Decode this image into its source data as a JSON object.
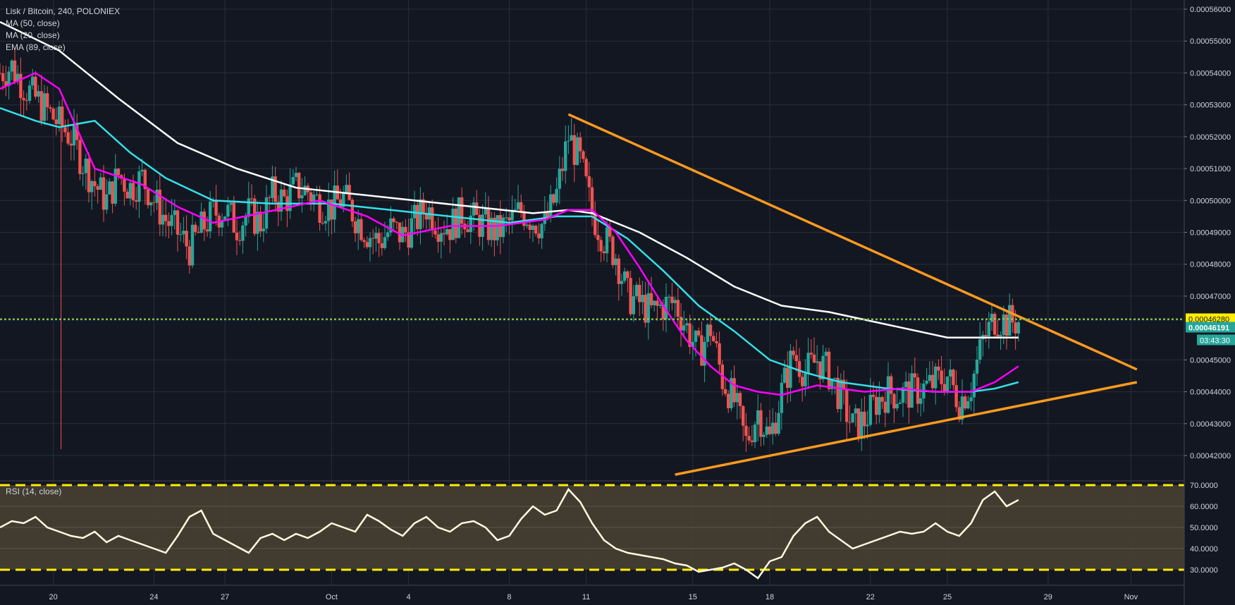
{
  "header": {
    "title": "Lisk / Bitcoin, 240, POLONIEX",
    "indicators": [
      "MA (50, close)",
      "MA (20, close)",
      "EMA (89, close)"
    ],
    "rsi_label": "RSI (14, close)"
  },
  "price_axis": {
    "labels": [
      "0.00056000",
      "0.00055000",
      "0.00054000",
      "0.00053000",
      "0.00052000",
      "0.00051000",
      "0.00050000",
      "0.00049000",
      "0.00048000",
      "0.00047000",
      "0.00045000",
      "0.00044000",
      "0.00043000",
      "0.00042000"
    ],
    "last_price": "0.00046280",
    "current_price": "0.00046191",
    "countdown": "03:43:30"
  },
  "rsi_axis": {
    "labels": [
      "70.0000",
      "60.0000",
      "50.0000",
      "40.0000",
      "30.0000"
    ]
  },
  "time_axis": {
    "labels": [
      "20",
      "24",
      "27",
      "Oct",
      "4",
      "8",
      "11",
      "15",
      "18",
      "22",
      "25",
      "29",
      "Nov"
    ]
  },
  "colors": {
    "background": "#131722",
    "up": "#26a69a",
    "down": "#ef5350",
    "ma50": "#ff00ff",
    "ma20": "#33e0e8",
    "ema89": "#ffffff",
    "trendline": "#ff9a1f",
    "rsi_line": "#fffbe0",
    "rsi_band": "#4a4233",
    "rsi_level": "#ffee00",
    "last_price": "#ffee00",
    "current_price": "#26a69a"
  },
  "chart_data": {
    "type": "candlestick",
    "symbol": "Lisk / Bitcoin",
    "interval": "240",
    "exchange": "POLONIEX",
    "ylim": [
      0.000415,
      0.000565
    ],
    "rsi_ylim": [
      25,
      71
    ],
    "rsi_levels": [
      70,
      30
    ],
    "ohlc_path": [
      [
        0,
        0.00054
      ],
      [
        2,
        0.000542
      ],
      [
        4,
        0.000536
      ],
      [
        6,
        0.000532
      ],
      [
        8,
        0.000528
      ],
      [
        10,
        0.000524
      ],
      [
        12,
        0.00052
      ],
      [
        14,
        0.000512
      ],
      [
        16,
        0.000505
      ],
      [
        18,
        0.0005
      ],
      [
        20,
        0.000508
      ],
      [
        22,
        0.000504
      ],
      [
        24,
        0.000507
      ],
      [
        26,
        0.0005
      ],
      [
        28,
        0.000494
      ],
      [
        30,
        0.00049
      ],
      [
        32,
        0.000485
      ],
      [
        34,
        0.000491
      ],
      [
        36,
        0.000496
      ],
      [
        38,
        0.000497
      ],
      [
        40,
        0.000492
      ],
      [
        42,
        0.000496
      ],
      [
        44,
        0.000493
      ],
      [
        46,
        0.000502
      ],
      [
        48,
        0.0005
      ],
      [
        50,
        0.000504
      ],
      [
        52,
        0.000503
      ],
      [
        54,
        0.000499
      ],
      [
        56,
        0.000498
      ],
      [
        58,
        0.000501
      ],
      [
        60,
        0.000495
      ],
      [
        62,
        0.00049
      ],
      [
        64,
        0.000487
      ],
      [
        66,
        0.000491
      ],
      [
        68,
        0.000489
      ],
      [
        70,
        0.000493
      ],
      [
        72,
        0.000498
      ],
      [
        74,
        0.000493
      ],
      [
        76,
        0.000492
      ],
      [
        78,
        0.000496
      ],
      [
        80,
        0.000494
      ],
      [
        82,
        0.000492
      ],
      [
        84,
        0.00049
      ],
      [
        86,
        0.000493
      ],
      [
        88,
        0.000497
      ],
      [
        90,
        0.000494
      ],
      [
        92,
        0.000492
      ],
      [
        94,
        0.000502
      ],
      [
        96,
        0.00052
      ],
      [
        98,
        0.000512
      ],
      [
        100,
        0.000496
      ],
      [
        102,
        0.000488
      ],
      [
        104,
        0.000483
      ],
      [
        106,
        0.00047
      ],
      [
        108,
        0.000468
      ],
      [
        110,
        0.000465
      ],
      [
        112,
        0.000467
      ],
      [
        114,
        0.000468
      ],
      [
        116,
        0.00046
      ],
      [
        118,
        0.000452
      ],
      [
        120,
        0.00046
      ],
      [
        122,
        0.000444
      ],
      [
        124,
        0.000437
      ],
      [
        126,
        0.000424
      ],
      [
        128,
        0.000434
      ],
      [
        130,
        0.000425
      ],
      [
        132,
        0.00044
      ],
      [
        134,
        0.000452
      ],
      [
        136,
        0.000446
      ],
      [
        138,
        0.00045
      ],
      [
        140,
        0.000446
      ],
      [
        142,
        0.000438
      ],
      [
        144,
        0.000429
      ],
      [
        146,
        0.000431
      ],
      [
        148,
        0.000437
      ],
      [
        150,
        0.00044
      ],
      [
        152,
        0.000439
      ],
      [
        154,
        0.00044
      ],
      [
        156,
        0.000441
      ],
      [
        158,
        0.000443
      ],
      [
        160,
        0.000445
      ],
      [
        162,
        0.000437
      ],
      [
        164,
        0.000442
      ],
      [
        166,
        0.000456
      ],
      [
        168,
        0.000463
      ],
      [
        170,
        0.000462
      ],
      [
        172,
        0.000462
      ]
    ],
    "ma50_path": [
      [
        0,
        0.000535
      ],
      [
        6,
        0.00054
      ],
      [
        10,
        0.000535
      ],
      [
        16,
        0.00051
      ],
      [
        24,
        0.000505
      ],
      [
        30,
        0.000498
      ],
      [
        36,
        0.000493
      ],
      [
        44,
        0.000496
      ],
      [
        54,
        0.0005
      ],
      [
        62,
        0.000495
      ],
      [
        68,
        0.000489
      ],
      [
        76,
        0.000492
      ],
      [
        84,
        0.000492
      ],
      [
        92,
        0.000494
      ],
      [
        96,
        0.000497
      ],
      [
        100,
        0.000497
      ],
      [
        104,
        0.00049
      ],
      [
        108,
        0.000479
      ],
      [
        112,
        0.000467
      ],
      [
        116,
        0.000456
      ],
      [
        120,
        0.000448
      ],
      [
        124,
        0.000442
      ],
      [
        128,
        0.00044
      ],
      [
        132,
        0.000439
      ],
      [
        138,
        0.000442
      ],
      [
        146,
        0.00044
      ],
      [
        152,
        0.000441
      ],
      [
        158,
        0.00044
      ],
      [
        164,
        0.00044
      ],
      [
        168,
        0.000443
      ],
      [
        172,
        0.000448
      ]
    ],
    "ma20_path": [
      [
        0,
        0.000529
      ],
      [
        6,
        0.000525
      ],
      [
        10,
        0.000523
      ],
      [
        16,
        0.000525
      ],
      [
        22,
        0.000515
      ],
      [
        28,
        0.000507
      ],
      [
        36,
        0.0005
      ],
      [
        46,
        0.000499
      ],
      [
        56,
        0.000499
      ],
      [
        66,
        0.000497
      ],
      [
        76,
        0.000495
      ],
      [
        86,
        0.000493
      ],
      [
        94,
        0.000495
      ],
      [
        100,
        0.000495
      ],
      [
        106,
        0.000488
      ],
      [
        112,
        0.000478
      ],
      [
        118,
        0.000467
      ],
      [
        124,
        0.000459
      ],
      [
        130,
        0.00045
      ],
      [
        136,
        0.000446
      ],
      [
        142,
        0.000443
      ],
      [
        150,
        0.000441
      ],
      [
        158,
        0.00044
      ],
      [
        164,
        0.00044
      ],
      [
        168,
        0.000441
      ],
      [
        172,
        0.000443
      ]
    ],
    "ema89_path": [
      [
        0,
        0.000556
      ],
      [
        10,
        0.000547
      ],
      [
        20,
        0.000532
      ],
      [
        30,
        0.000518
      ],
      [
        40,
        0.00051
      ],
      [
        50,
        0.000504
      ],
      [
        60,
        0.000502
      ],
      [
        70,
        0.0005
      ],
      [
        80,
        0.000498
      ],
      [
        90,
        0.000496
      ],
      [
        96,
        0.000497
      ],
      [
        100,
        0.000496
      ],
      [
        108,
        0.00049
      ],
      [
        116,
        0.000482
      ],
      [
        124,
        0.000473
      ],
      [
        132,
        0.000467
      ],
      [
        140,
        0.000465
      ],
      [
        150,
        0.000461
      ],
      [
        160,
        0.000457
      ],
      [
        166,
        0.000457
      ],
      [
        172,
        0.000457
      ]
    ],
    "trendlines": [
      {
        "from": [
          96,
          0.000527
        ],
        "to": [
          192,
          0.000447
        ]
      },
      {
        "from": [
          114,
          0.000414
        ],
        "to": [
          192,
          0.000443
        ]
      }
    ],
    "rsi_path": [
      [
        0,
        50
      ],
      [
        2,
        53
      ],
      [
        4,
        52
      ],
      [
        6,
        55
      ],
      [
        8,
        50
      ],
      [
        10,
        48
      ],
      [
        12,
        46
      ],
      [
        14,
        45
      ],
      [
        16,
        48
      ],
      [
        18,
        43
      ],
      [
        20,
        46
      ],
      [
        22,
        44
      ],
      [
        24,
        42
      ],
      [
        26,
        40
      ],
      [
        28,
        38
      ],
      [
        30,
        46
      ],
      [
        32,
        55
      ],
      [
        34,
        58
      ],
      [
        36,
        47
      ],
      [
        38,
        44
      ],
      [
        40,
        41
      ],
      [
        42,
        38
      ],
      [
        44,
        45
      ],
      [
        46,
        47
      ],
      [
        48,
        44
      ],
      [
        50,
        47
      ],
      [
        52,
        45
      ],
      [
        54,
        48
      ],
      [
        56,
        52
      ],
      [
        58,
        50
      ],
      [
        60,
        48
      ],
      [
        62,
        56
      ],
      [
        64,
        53
      ],
      [
        66,
        49
      ],
      [
        68,
        46
      ],
      [
        70,
        52
      ],
      [
        72,
        55
      ],
      [
        74,
        50
      ],
      [
        76,
        48
      ],
      [
        78,
        52
      ],
      [
        80,
        53
      ],
      [
        82,
        50
      ],
      [
        84,
        44
      ],
      [
        86,
        46
      ],
      [
        88,
        54
      ],
      [
        90,
        60
      ],
      [
        92,
        56
      ],
      [
        94,
        58
      ],
      [
        96,
        68
      ],
      [
        98,
        62
      ],
      [
        100,
        52
      ],
      [
        102,
        44
      ],
      [
        104,
        40
      ],
      [
        106,
        38
      ],
      [
        108,
        37
      ],
      [
        110,
        36
      ],
      [
        112,
        35
      ],
      [
        114,
        33
      ],
      [
        116,
        32
      ],
      [
        118,
        29
      ],
      [
        120,
        30
      ],
      [
        122,
        31
      ],
      [
        124,
        33
      ],
      [
        126,
        30
      ],
      [
        128,
        26
      ],
      [
        130,
        34
      ],
      [
        132,
        36
      ],
      [
        134,
        46
      ],
      [
        136,
        52
      ],
      [
        138,
        55
      ],
      [
        140,
        48
      ],
      [
        142,
        44
      ],
      [
        144,
        40
      ],
      [
        146,
        42
      ],
      [
        148,
        44
      ],
      [
        150,
        46
      ],
      [
        152,
        48
      ],
      [
        154,
        47
      ],
      [
        156,
        48
      ],
      [
        158,
        52
      ],
      [
        160,
        48
      ],
      [
        162,
        46
      ],
      [
        164,
        52
      ],
      [
        166,
        63
      ],
      [
        168,
        67
      ],
      [
        170,
        60
      ],
      [
        172,
        63
      ]
    ],
    "x_ticks": [
      {
        "x": 9,
        "label": "20"
      },
      {
        "x": 26,
        "label": "24"
      },
      {
        "x": 38,
        "label": "27"
      },
      {
        "x": 56,
        "label": "Oct"
      },
      {
        "x": 69,
        "label": "4"
      },
      {
        "x": 86,
        "label": "8"
      },
      {
        "x": 99,
        "label": "11"
      },
      {
        "x": 117,
        "label": "15"
      },
      {
        "x": 130,
        "label": "18"
      },
      {
        "x": 147,
        "label": "22"
      },
      {
        "x": 160,
        "label": "25"
      },
      {
        "x": 177,
        "label": "29"
      },
      {
        "x": 191,
        "label": "Nov"
      }
    ],
    "x_range": [
      0,
      200
    ]
  }
}
